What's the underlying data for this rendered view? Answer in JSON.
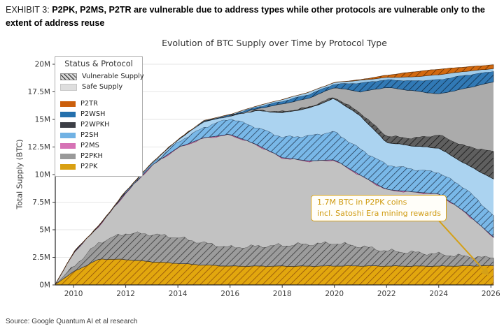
{
  "exhibit": {
    "prefix": "EXHIBIT 3: ",
    "title": "P2PK, P2MS, P2TR are vulnerable due to address types while other protocols are vulnerable only to the extent of address reuse"
  },
  "source": "Source: Google Quantum AI et al research",
  "annotation": {
    "line1": "1.7M BTC in P2PK coins",
    "line2": "incl. Satoshi Era mining rewards"
  },
  "legend": {
    "title": "Status & Protocol",
    "status_items": [
      {
        "label": "Vulnerable Supply",
        "swatch": "hatched"
      },
      {
        "label": "Safe Supply",
        "swatch": "solid"
      }
    ],
    "protocol_items": [
      {
        "label": "P2TR",
        "color": "#cb5f0c"
      },
      {
        "label": "P2WSH",
        "color": "#2470ad"
      },
      {
        "label": "P2WPKH",
        "color": "#3d3f46"
      },
      {
        "label": "P2SH",
        "color": "#71b2e4"
      },
      {
        "label": "P2MS",
        "color": "#d672b5"
      },
      {
        "label": "P2PKH",
        "color": "#999999"
      },
      {
        "label": "P2PK",
        "color": "#d9a012"
      }
    ]
  },
  "chart_data": {
    "type": "area",
    "title": "Evolution of BTC Supply over Time by Protocol Type",
    "xlabel": "",
    "ylabel": "Total Supply (BTC)",
    "xlim": [
      2009.3,
      2026.1
    ],
    "ylim": [
      0,
      20.55
    ],
    "grid": "horizontal",
    "legend_position": "upper-left",
    "unit": "million BTC",
    "xticks": [
      {
        "v": 2010,
        "label": "2010"
      },
      {
        "v": 2012,
        "label": "2012"
      },
      {
        "v": 2014,
        "label": "2014"
      },
      {
        "v": 2016,
        "label": "2016"
      },
      {
        "v": 2018,
        "label": "2018"
      },
      {
        "v": 2020,
        "label": "2020"
      },
      {
        "v": 2022,
        "label": "2022"
      },
      {
        "v": 2024,
        "label": "2024"
      },
      {
        "v": 2026,
        "label": "2026"
      }
    ],
    "yticks": [
      {
        "v": 0,
        "label": "0M"
      },
      {
        "v": 2.5,
        "label": "2.5M"
      },
      {
        "v": 5,
        "label": "5M"
      },
      {
        "v": 7.5,
        "label": "7.5M"
      },
      {
        "v": 10,
        "label": "10M"
      },
      {
        "v": 12.5,
        "label": "12.5M"
      },
      {
        "v": 15,
        "label": "15M"
      },
      {
        "v": 17.5,
        "label": "17.5M"
      },
      {
        "v": 20,
        "label": "20M"
      }
    ],
    "x": [
      2009.3,
      2010,
      2011,
      2012,
      2013,
      2014,
      2015,
      2016,
      2017,
      2018,
      2019,
      2020,
      2021,
      2022,
      2023,
      2024,
      2025,
      2026.1
    ],
    "stacking_note": "layers are stacked bottom-to-top; 'top' arrays are cumulative stack boundaries in millions of BTC",
    "layers": [
      {
        "protocol": "P2PK",
        "status": "vulnerable",
        "hatched": true,
        "fill": "#e2a70e",
        "hatch_color": "#8a4a0a",
        "top": [
          0.05,
          1.2,
          2.35,
          2.3,
          2.1,
          1.95,
          1.8,
          1.7,
          1.7,
          1.7,
          1.7,
          1.72,
          1.72,
          1.71,
          1.7,
          1.7,
          1.72,
          1.75
        ]
      },
      {
        "protocol": "P2PKH",
        "status": "vulnerable",
        "hatched": true,
        "fill": "#9c9c9c",
        "hatch_color": "#333333",
        "top": [
          0.05,
          1.7,
          3.9,
          4.7,
          4.6,
          4.3,
          3.8,
          3.4,
          3.5,
          3.6,
          3.7,
          3.8,
          3.5,
          3.1,
          2.95,
          2.8,
          2.6,
          2.45
        ]
      },
      {
        "protocol": "P2PKH",
        "status": "safe",
        "hatched": false,
        "fill": "#c2c2c2",
        "top": [
          0.05,
          2.9,
          5.4,
          8.3,
          10.8,
          12.4,
          13.3,
          13.6,
          12.7,
          11.5,
          11.2,
          11.3,
          9.9,
          8.6,
          8.4,
          8.2,
          6.6,
          4.3
        ]
      },
      {
        "protocol": "P2MS",
        "status": "vulnerable",
        "hatched": true,
        "fill": "#de8ec4",
        "hatch_color": "#8c3d6e",
        "top": [
          0.05,
          2.9,
          5.42,
          8.34,
          10.84,
          12.44,
          13.34,
          13.64,
          12.74,
          11.54,
          11.24,
          11.34,
          9.94,
          8.64,
          8.44,
          8.24,
          6.64,
          4.34
        ]
      },
      {
        "protocol": "P2SH",
        "status": "vulnerable",
        "hatched": true,
        "fill": "#79b8e8",
        "hatch_color": "#20354d",
        "top": [
          0.05,
          2.9,
          5.42,
          8.4,
          10.95,
          12.95,
          14.3,
          15.1,
          14.3,
          13.4,
          13.5,
          13.9,
          12.3,
          10.9,
          10.5,
          10.2,
          8.8,
          6.3
        ]
      },
      {
        "protocol": "P2SH",
        "status": "safe",
        "hatched": false,
        "fill": "#abd3f0",
        "top": [
          0.05,
          2.9,
          5.42,
          8.45,
          11.05,
          13.15,
          14.8,
          15.3,
          15.8,
          15.6,
          16.0,
          16.9,
          15.3,
          12.9,
          12.6,
          12.4,
          11.0,
          9.6
        ]
      },
      {
        "protocol": "P2WPKH",
        "status": "vulnerable",
        "hatched": true,
        "fill": "#5f5f5f",
        "hatch_color": "#101010",
        "top": [
          0.05,
          2.9,
          5.42,
          8.45,
          11.05,
          13.15,
          14.8,
          15.3,
          15.85,
          15.7,
          16.1,
          17.05,
          15.6,
          13.5,
          13.3,
          13.6,
          12.6,
          12.1
        ]
      },
      {
        "protocol": "P2WPKH",
        "status": "safe",
        "hatched": false,
        "fill": "#ababab",
        "top": [
          0.05,
          2.9,
          5.42,
          8.45,
          11.05,
          13.15,
          14.8,
          15.32,
          15.95,
          16.4,
          16.9,
          17.9,
          17.5,
          17.9,
          17.6,
          17.3,
          17.8,
          18.4
        ]
      },
      {
        "protocol": "P2WSH",
        "status": "vulnerable",
        "hatched": true,
        "fill": "#3179b5",
        "hatch_color": "#0d2740",
        "top": [
          0.05,
          2.9,
          5.42,
          8.45,
          11.05,
          13.15,
          14.85,
          15.4,
          16.1,
          16.65,
          17.25,
          18.2,
          18.3,
          18.6,
          18.5,
          18.6,
          19.0,
          19.35
        ]
      },
      {
        "protocol": "P2WSH",
        "status": "safe",
        "hatched": false,
        "fill": "#9fcbea",
        "top": [
          0.05,
          2.9,
          5.42,
          8.45,
          11.05,
          13.15,
          14.9,
          15.45,
          16.2,
          16.8,
          17.45,
          18.35,
          18.55,
          18.8,
          18.85,
          19.05,
          19.35,
          19.6
        ]
      },
      {
        "protocol": "P2TR",
        "status": "vulnerable",
        "hatched": true,
        "fill": "#d2690f",
        "hatch_color": "#5e2d05",
        "top": [
          0.05,
          2.9,
          5.42,
          8.45,
          11.05,
          13.15,
          14.9,
          15.45,
          16.2,
          16.8,
          17.45,
          18.35,
          18.6,
          19.0,
          19.3,
          19.55,
          19.75,
          19.95
        ]
      }
    ],
    "annotation": {
      "text": "1.7M BTC in P2PK coins incl. Satoshi Era mining rewards",
      "arrow_points_to": {
        "x": 2025.9,
        "y_M": 0.9
      }
    }
  }
}
